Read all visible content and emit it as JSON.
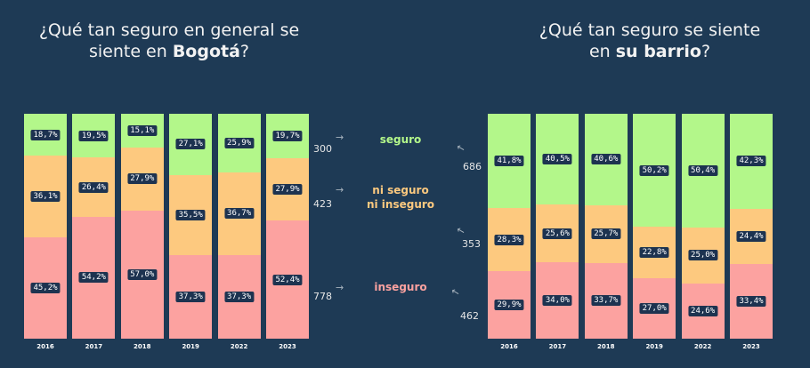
{
  "titles": {
    "left": {
      "pre": "¿Qué tan seguro en general se siente en ",
      "bold": "Bogotá",
      "post": "?"
    },
    "right": {
      "pre": "¿Qué tan seguro se siente en ",
      "bold": "su barrio",
      "post": "?"
    }
  },
  "legend": {
    "seguro": "seguro",
    "ni": "ni seguro ni inseguro",
    "ni_line1": "ni seguro",
    "ni_line2": "ni inseguro",
    "inseguro": "inseguro"
  },
  "counts": {
    "left": {
      "seguro": "300",
      "ni": "423",
      "inseguro": "778"
    },
    "right": {
      "seguro": "686",
      "ni": "353",
      "inseguro": "462"
    }
  },
  "colors": {
    "seguro": "#b3f78a",
    "ni": "#fdc97f",
    "inseguro": "#fca2a0",
    "background": "#1e3a55"
  },
  "chart_data": [
    {
      "type": "bar",
      "stacked": true,
      "title": "¿Qué tan seguro en general se siente en Bogotá?",
      "categories": [
        "2016",
        "2017",
        "2018",
        "2019",
        "2022",
        "2023"
      ],
      "series": [
        {
          "name": "seguro",
          "values": [
            18.7,
            19.5,
            15.1,
            27.1,
            25.9,
            19.7
          ],
          "labels": [
            "18,7%",
            "19,5%",
            "15,1%",
            "27,1%",
            "25,9%",
            "19,7%"
          ]
        },
        {
          "name": "ni seguro ni inseguro",
          "values": [
            36.1,
            26.4,
            27.9,
            35.5,
            36.7,
            27.9
          ],
          "labels": [
            "36,1%",
            "26,4%",
            "27,9%",
            "35,5%",
            "36,7%",
            "27,9%"
          ]
        },
        {
          "name": "inseguro",
          "values": [
            45.2,
            54.2,
            57.0,
            37.3,
            37.3,
            52.4
          ],
          "labels": [
            "45,2%",
            "54,2%",
            "57,0%",
            "37,3%",
            "37,3%",
            "52,4%"
          ]
        }
      ],
      "ylim": [
        0,
        100
      ]
    },
    {
      "type": "bar",
      "stacked": true,
      "title": "¿Qué tan seguro se siente en su barrio?",
      "categories": [
        "2016",
        "2017",
        "2018",
        "2019",
        "2022",
        "2023"
      ],
      "series": [
        {
          "name": "seguro",
          "values": [
            41.8,
            40.5,
            40.6,
            50.2,
            50.4,
            42.3
          ],
          "labels": [
            "41,8%",
            "40,5%",
            "40,6%",
            "50,2%",
            "50,4%",
            "42,3%"
          ]
        },
        {
          "name": "ni seguro ni inseguro",
          "values": [
            28.3,
            25.6,
            25.7,
            22.8,
            25.0,
            24.4
          ],
          "labels": [
            "28,3%",
            "25,6%",
            "25,7%",
            "22,8%",
            "25,0%",
            "24,4%"
          ]
        },
        {
          "name": "inseguro",
          "values": [
            29.9,
            34.0,
            33.7,
            27.0,
            24.6,
            33.4
          ],
          "labels": [
            "29,9%",
            "34,0%",
            "33,7%",
            "27,0%",
            "24,6%",
            "33,4%"
          ]
        }
      ],
      "ylim": [
        0,
        100
      ]
    }
  ]
}
